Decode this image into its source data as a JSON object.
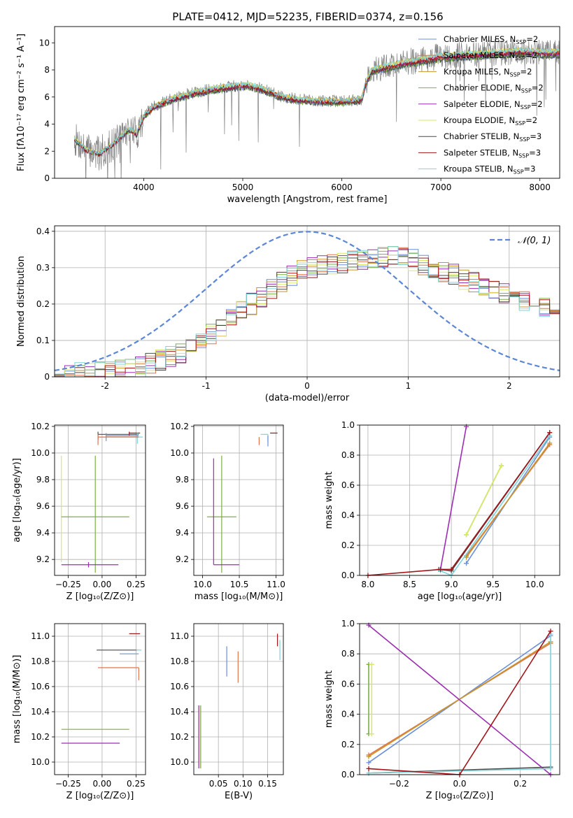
{
  "figure": {
    "title": "PLATE=0412, MJD=52235, FIBERID=0374, z=0.156"
  },
  "colors": {
    "chabrier_miles": "#6b8fd8",
    "salpeter_miles": "#e2744a",
    "kroupa_miles": "#c8952c",
    "chabrier_elodie": "#78b045",
    "salpeter_elodie": "#9b2fb0",
    "kroupa_elodie": "#d9e86a",
    "chabrier_stelib": "#4a4a4a",
    "salpeter_stelib": "#a3141a",
    "kroupa_stelib": "#7fd3d8",
    "data": "#808080",
    "normal": "#5b87d6"
  },
  "chart_data": [
    {
      "id": "spectrum",
      "type": "line",
      "xlabel": "wavelength [Angstrom, rest frame]",
      "ylabel": "Flux [fλ10⁻¹⁷ erg cm⁻² s⁻¹ A⁻¹]",
      "xlim": [
        3100,
        8200
      ],
      "ylim": [
        0,
        11.2
      ],
      "xticks": [
        4000,
        5000,
        6000,
        7000,
        8000
      ],
      "yticks": [
        0,
        2,
        4,
        6,
        8,
        10
      ],
      "legend_position": "upper-right",
      "continuum_knots": {
        "x": [
          3300,
          3420,
          3550,
          3700,
          3850,
          3930,
          4000,
          4100,
          4300,
          4500,
          4700,
          4900,
          5050,
          5200,
          5400,
          5600,
          5800,
          6000,
          6200,
          6240,
          6300,
          6600,
          7000,
          7400,
          7800,
          8000
        ],
        "y": [
          2.9,
          2.1,
          1.8,
          2.6,
          3.6,
          3.3,
          4.6,
          5.3,
          5.9,
          6.3,
          6.6,
          6.8,
          6.9,
          6.6,
          6.0,
          5.8,
          5.7,
          5.7,
          5.8,
          7.0,
          8.0,
          8.5,
          9.0,
          9.2,
          9.4,
          9.3
        ]
      },
      "series": [
        {
          "name": "Chabrier MILES",
          "nssp": "2",
          "color_key": "chabrier_miles"
        },
        {
          "name": "Salpeter MILES",
          "nssp": "2",
          "color_key": "salpeter_miles"
        },
        {
          "name": "Kroupa MILES",
          "nssp": "2",
          "color_key": "kroupa_miles"
        },
        {
          "name": "Chabrier ELODIE",
          "nssp": "2",
          "color_key": "chabrier_elodie"
        },
        {
          "name": "Salpeter ELODIE",
          "nssp": "2",
          "color_key": "salpeter_elodie"
        },
        {
          "name": "Kroupa ELODIE",
          "nssp": "2",
          "color_key": "kroupa_elodie"
        },
        {
          "name": "Chabrier STELIB",
          "nssp": "3",
          "color_key": "chabrier_stelib"
        },
        {
          "name": "Salpeter STELIB",
          "nssp": "3",
          "color_key": "salpeter_stelib"
        },
        {
          "name": "Kroupa STELIB",
          "nssp": "3",
          "color_key": "kroupa_stelib"
        }
      ]
    },
    {
      "id": "residuals",
      "type": "line",
      "xlabel": "(data-model)/error",
      "ylabel": "Normed distribution",
      "xlim": [
        -2.5,
        2.5
      ],
      "ylim": [
        0,
        0.415
      ],
      "xticks": [
        -2,
        -1,
        0,
        1,
        2
      ],
      "yticks": [
        0.0,
        0.1,
        0.2,
        0.3,
        0.4
      ],
      "grid": true,
      "legend_position": "upper-right",
      "normal_label": "𝒩(0, 1)",
      "hist_x": [
        -2.5,
        -2.4,
        -2.3,
        -2.2,
        -2.1,
        -2.0,
        -1.9,
        -1.8,
        -1.7,
        -1.6,
        -1.5,
        -1.4,
        -1.3,
        -1.2,
        -1.1,
        -1.0,
        -0.9,
        -0.8,
        -0.7,
        -0.6,
        -0.5,
        -0.4,
        -0.3,
        -0.2,
        -0.1,
        0.0,
        0.1,
        0.2,
        0.3,
        0.4,
        0.5,
        0.6,
        0.7,
        0.8,
        0.9,
        1.0,
        1.1,
        1.2,
        1.3,
        1.4,
        1.5,
        1.6,
        1.7,
        1.8,
        1.9,
        2.0,
        2.1,
        2.2,
        2.3,
        2.4
      ],
      "hist_y": [
        0.006,
        0.008,
        0.01,
        0.012,
        0.015,
        0.017,
        0.019,
        0.023,
        0.028,
        0.035,
        0.045,
        0.055,
        0.067,
        0.082,
        0.1,
        0.12,
        0.14,
        0.16,
        0.18,
        0.2,
        0.22,
        0.24,
        0.26,
        0.275,
        0.29,
        0.3,
        0.305,
        0.31,
        0.315,
        0.32,
        0.325,
        0.33,
        0.33,
        0.33,
        0.325,
        0.32,
        0.31,
        0.3,
        0.29,
        0.28,
        0.27,
        0.26,
        0.25,
        0.24,
        0.23,
        0.22,
        0.21,
        0.2,
        0.19,
        0.18
      ]
    },
    {
      "id": "age_vs_Z",
      "type": "scatter",
      "xlabel": "Z [log₁₀(Z/Z⊙)]",
      "ylabel": "age  [log₁₀(age/yr)]",
      "xlim": [
        -0.35,
        0.32
      ],
      "ylim": [
        9.08,
        10.21
      ],
      "xticks": [
        -0.25,
        0.0,
        0.25
      ],
      "xticklabels": [
        "−0.25",
        "0.00",
        "0.25"
      ],
      "yticks": [
        9.2,
        9.4,
        9.6,
        9.8,
        10.0,
        10.2
      ],
      "yticklabels": [
        "9.2",
        "9.4",
        "9.6",
        "9.8",
        "10.0",
        "10.2"
      ],
      "grid": true,
      "points": [
        {
          "color_key": "salpeter_stelib",
          "x": 0.2,
          "xerr": [
            0.0,
            0.08
          ],
          "y": 10.15,
          "yerr": [
            0.02,
            0.01
          ]
        },
        {
          "color_key": "chabrier_stelib",
          "x": -0.03,
          "xerr": [
            0.0,
            0.3
          ],
          "y": 10.14,
          "yerr": [
            0.04,
            0.02
          ]
        },
        {
          "color_key": "kroupa_stelib",
          "x": 0.26,
          "xerr": [
            0.0,
            0.04
          ],
          "y": 10.12,
          "yerr": [
            0.05,
            0.03
          ]
        },
        {
          "color_key": "chabrier_miles",
          "x": 0.03,
          "xerr": [
            0.0,
            0.24
          ],
          "y": 10.13,
          "yerr": [
            0.04,
            0.02
          ]
        },
        {
          "color_key": "salpeter_miles",
          "x": -0.03,
          "xerr": [
            0.0,
            0.3
          ],
          "y": 10.12,
          "yerr": [
            0.06,
            0.02
          ]
        },
        {
          "color_key": "kroupa_elodie",
          "x": -0.3,
          "xerr": [
            0.0,
            0.0
          ],
          "y": 9.58,
          "yerr": [
            0.4,
            0.4
          ]
        },
        {
          "color_key": "chabrier_elodie",
          "x": -0.05,
          "xerr": [
            0.25,
            0.25
          ],
          "y": 9.52,
          "yerr": [
            0.42,
            0.46
          ]
        },
        {
          "color_key": "salpeter_elodie",
          "x": -0.1,
          "xerr": [
            0.2,
            0.22
          ],
          "y": 9.16,
          "yerr": [
            0.02,
            0.02
          ]
        }
      ]
    },
    {
      "id": "age_vs_mass",
      "type": "scatter",
      "xlabel": "mass [log₁₀(M/M⊙)]",
      "xlim": [
        9.88,
        11.1
      ],
      "ylim": [
        9.08,
        10.21
      ],
      "xticks": [
        10.0,
        10.5,
        11.0
      ],
      "xticklabels": [
        "10.0",
        "10.5",
        "11.0"
      ],
      "yticks": [
        9.2,
        9.4,
        9.6,
        9.8,
        10.0,
        10.2
      ],
      "yticklabels": [
        "9.2",
        "9.4",
        "9.6",
        "9.8",
        "10.0",
        "10.2"
      ],
      "grid": true,
      "points": [
        {
          "color_key": "salpeter_stelib",
          "x": 11.02,
          "xerr": [
            0.1,
            0.0
          ],
          "y": 10.15,
          "yerr": [
            0.0,
            0.0
          ]
        },
        {
          "color_key": "kroupa_stelib",
          "x": 10.89,
          "xerr": [
            0.1,
            0.0
          ],
          "y": 10.14,
          "yerr": [
            0.06,
            0.0
          ]
        },
        {
          "color_key": "chabrier_miles",
          "x": 10.89,
          "xerr": [
            0.0,
            0.0
          ],
          "y": 10.13,
          "yerr": [
            0.08,
            0.0
          ]
        },
        {
          "color_key": "salpeter_miles",
          "x": 10.77,
          "xerr": [
            0.0,
            0.0
          ],
          "y": 10.12,
          "yerr": [
            0.06,
            0.0
          ]
        },
        {
          "color_key": "chabrier_elodie",
          "x": 10.26,
          "xerr": [
            0.2,
            0.2
          ],
          "y": 9.52,
          "yerr": [
            0.42,
            0.46
          ]
        },
        {
          "color_key": "salpeter_elodie",
          "x": 10.15,
          "xerr": [
            0.0,
            0.35
          ],
          "y": 9.16,
          "yerr": [
            0.0,
            0.8
          ]
        }
      ]
    },
    {
      "id": "weight_vs_age",
      "type": "line",
      "xlabel": "age  [log₁₀(age/yr)]",
      "ylabel": "mass weight",
      "xlim": [
        7.9,
        10.3
      ],
      "ylim": [
        0,
        1
      ],
      "xticks": [
        8.0,
        8.5,
        9.0,
        9.5,
        10.0
      ],
      "xticklabels": [
        "8.0",
        "8.5",
        "9.0",
        "9.5",
        "10.0"
      ],
      "yticks": [
        0.0,
        0.2,
        0.4,
        0.6,
        0.8,
        1.0
      ],
      "yticklabels": [
        "0.0",
        "0.2",
        "0.4",
        "0.6",
        "0.8",
        "1.0"
      ],
      "grid": true,
      "series": [
        {
          "color_key": "chabrier_miles",
          "x": [
            9.18,
            10.18
          ],
          "y": [
            0.08,
            0.92
          ]
        },
        {
          "color_key": "salpeter_miles",
          "x": [
            9.18,
            10.18
          ],
          "y": [
            0.13,
            0.87
          ]
        },
        {
          "color_key": "kroupa_miles",
          "x": [
            9.18,
            10.18
          ],
          "y": [
            0.12,
            0.88
          ]
        },
        {
          "color_key": "chabrier_elodie",
          "x": [
            9.18,
            9.6
          ],
          "y": [
            0.27,
            0.73
          ]
        },
        {
          "color_key": "kroupa_elodie",
          "x": [
            9.18,
            9.6
          ],
          "y": [
            0.27,
            0.73
          ]
        },
        {
          "color_key": "salpeter_elodie",
          "x": [
            8.87,
            9.18
          ],
          "y": [
            0.04,
            0.99
          ]
        },
        {
          "color_key": "chabrier_stelib",
          "x": [
            8.85,
            9.0,
            10.18
          ],
          "y": [
            0.04,
            0.03,
            0.95
          ]
        },
        {
          "color_key": "kroupa_stelib",
          "x": [
            8.87,
            9.0,
            10.18
          ],
          "y": [
            0.03,
            0.0,
            0.93
          ]
        },
        {
          "color_key": "salpeter_stelib",
          "x": [
            8.0,
            8.87,
            9.0,
            10.18
          ],
          "y": [
            0.0,
            0.04,
            0.04,
            0.95
          ]
        }
      ]
    },
    {
      "id": "mass_vs_Z",
      "type": "scatter",
      "xlabel": "Z [log₁₀(Z/Z⊙)]",
      "ylabel": "mass [log₁₀(M/M⊙)]",
      "xlim": [
        -0.35,
        0.32
      ],
      "ylim": [
        9.9,
        11.1
      ],
      "xticks": [
        -0.25,
        0.0,
        0.25
      ],
      "xticklabels": [
        "−0.25",
        "0.00",
        "0.25"
      ],
      "yticks": [
        10.0,
        10.2,
        10.4,
        10.6,
        10.8,
        11.0
      ],
      "yticklabels": [
        "10.0",
        "10.2",
        "10.4",
        "10.6",
        "10.8",
        "11.0"
      ],
      "grid": true,
      "points": [
        {
          "color_key": "salpeter_stelib",
          "x": 0.28,
          "xerr": [
            0.08,
            0.0
          ],
          "y": 11.02,
          "yerr": [
            0.0,
            0.0
          ]
        },
        {
          "color_key": "chabrier_stelib",
          "x": 0.26,
          "xerr": [
            0.3,
            0.0
          ],
          "y": 10.89,
          "yerr": [
            0.0,
            0.0
          ]
        },
        {
          "color_key": "kroupa_stelib",
          "x": 0.29,
          "xerr": [
            0.04,
            0.0
          ],
          "y": 10.89,
          "yerr": [
            0.0,
            0.0
          ]
        },
        {
          "color_key": "chabrier_miles",
          "x": 0.27,
          "xerr": [
            0.14,
            0.0
          ],
          "y": 10.86,
          "yerr": [
            0.0,
            0.0
          ]
        },
        {
          "color_key": "salpeter_miles",
          "x": 0.27,
          "xerr": [
            0.3,
            0.0
          ],
          "y": 10.75,
          "yerr": [
            0.1,
            0.0
          ]
        },
        {
          "color_key": "chabrier_elodie",
          "x": 0.2,
          "xerr": [
            0.5,
            0.0
          ],
          "y": 10.26,
          "yerr": [
            0.0,
            0.0
          ]
        },
        {
          "color_key": "kroupa_elodie",
          "x": -0.3,
          "xerr": [
            0.0,
            0.0
          ],
          "y": 10.1,
          "yerr": [
            0.0,
            0.0
          ]
        },
        {
          "color_key": "salpeter_elodie",
          "x": 0.13,
          "xerr": [
            0.43,
            0.0
          ],
          "y": 10.15,
          "yerr": [
            0.0,
            0.0
          ]
        }
      ]
    },
    {
      "id": "mass_vs_ebv",
      "type": "scatter",
      "xlabel": "E(B-V)",
      "xlim": [
        0.0,
        0.182
      ],
      "ylim": [
        9.9,
        11.1
      ],
      "xticks": [
        0.05,
        0.1,
        0.15
      ],
      "xticklabels": [
        "0.05",
        "0.10",
        "0.15"
      ],
      "yticks": [
        10.0,
        10.2,
        10.4,
        10.6,
        10.8,
        11.0
      ],
      "yticklabels": [
        "10.0",
        "10.2",
        "10.4",
        "10.6",
        "10.8",
        "11.0"
      ],
      "grid": true,
      "points": [
        {
          "color_key": "salpeter_stelib",
          "x": 0.17,
          "y": 10.98,
          "yerr": [
            0.06,
            0.04
          ]
        },
        {
          "color_key": "kroupa_stelib",
          "x": 0.175,
          "y": 10.89,
          "yerr": [
            0.08,
            0.08
          ]
        },
        {
          "color_key": "chabrier_miles",
          "x": 0.067,
          "y": 10.8,
          "yerr": [
            0.12,
            0.12
          ]
        },
        {
          "color_key": "salpeter_miles",
          "x": 0.09,
          "y": 10.75,
          "yerr": [
            0.12,
            0.13
          ]
        },
        {
          "color_key": "kroupa_elodie",
          "x": 0.012,
          "y": 10.2,
          "yerr": [
            0.25,
            0.25
          ]
        },
        {
          "color_key": "salpeter_elodie",
          "x": 0.01,
          "y": 10.2,
          "yerr": [
            0.25,
            0.25
          ]
        },
        {
          "color_key": "chabrier_elodie",
          "x": 0.014,
          "y": 10.2,
          "yerr": [
            0.25,
            0.25
          ]
        }
      ]
    },
    {
      "id": "weight_vs_Z",
      "type": "line",
      "xlabel": "Z [log₁₀(Z/Z⊙)]",
      "ylabel": "mass weight",
      "xlim": [
        -0.33,
        0.33
      ],
      "ylim": [
        0,
        1
      ],
      "xticks": [
        -0.2,
        0.0,
        0.2
      ],
      "xticklabels": [
        "−0.2",
        "0.0",
        "0.2"
      ],
      "yticks": [
        0.0,
        0.2,
        0.4,
        0.6,
        0.8,
        1.0
      ],
      "yticklabels": [
        "0.0",
        "0.2",
        "0.4",
        "0.6",
        "0.8",
        "1.0"
      ],
      "grid": true,
      "series": [
        {
          "color_key": "chabrier_miles",
          "x": [
            -0.3,
            0.3
          ],
          "y": [
            0.08,
            0.92
          ]
        },
        {
          "color_key": "salpeter_miles",
          "x": [
            -0.3,
            0.3
          ],
          "y": [
            0.13,
            0.87
          ]
        },
        {
          "color_key": "kroupa_miles",
          "x": [
            -0.3,
            0.3
          ],
          "y": [
            0.12,
            0.88
          ]
        },
        {
          "color_key": "chabrier_elodie",
          "x": [
            -0.3,
            -0.3
          ],
          "y": [
            0.27,
            0.73
          ]
        },
        {
          "color_key": "kroupa_elodie",
          "x": [
            -0.29,
            -0.29
          ],
          "y": [
            0.27,
            0.73
          ]
        },
        {
          "color_key": "salpeter_elodie",
          "x": [
            -0.3,
            0.3
          ],
          "y": [
            0.99,
            0.0
          ]
        },
        {
          "color_key": "chabrier_stelib",
          "x": [
            -0.3,
            0.3
          ],
          "y": [
            0.01,
            0.05
          ]
        },
        {
          "color_key": "kroupa_stelib",
          "x": [
            -0.3,
            0.3,
            0.3
          ],
          "y": [
            0.01,
            0.04,
            0.93
          ]
        },
        {
          "color_key": "salpeter_stelib",
          "x": [
            -0.3,
            0.0,
            0.3
          ],
          "y": [
            0.04,
            0.0,
            0.95
          ]
        }
      ]
    }
  ]
}
